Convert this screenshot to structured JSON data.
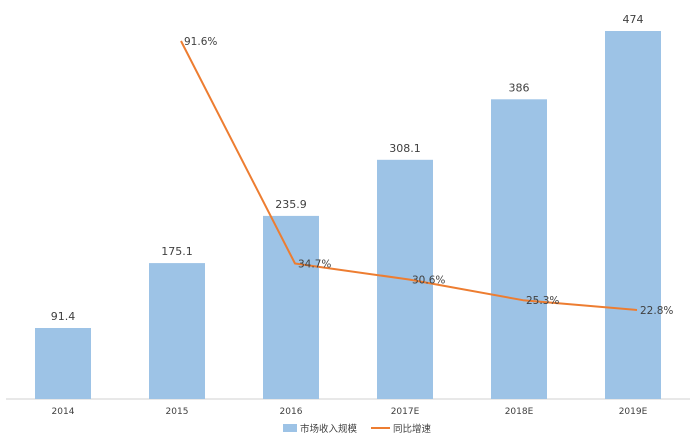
{
  "chart_data": {
    "type": "bar",
    "categories": [
      "2014",
      "2015",
      "2016",
      "2017E",
      "2018E",
      "2019E"
    ],
    "series": [
      {
        "name": "市场收入规模",
        "type": "bar",
        "axis": "left",
        "values": [
          91.4,
          175.1,
          235.9,
          308.1,
          386,
          474
        ],
        "labels": [
          "91.4",
          "175.1",
          "235.9",
          "308.1",
          "386",
          "474"
        ]
      },
      {
        "name": "同比增速",
        "type": "line",
        "axis": "right",
        "values": [
          null,
          91.6,
          34.7,
          30.6,
          25.3,
          22.8
        ],
        "labels": [
          "",
          "91.6%",
          "34.7%",
          "30.6%",
          "25.3%",
          "22.8%"
        ]
      }
    ],
    "ylim": [
      0,
      500
    ],
    "y2lim": [
      0,
      100
    ],
    "grid": false,
    "legend_position": "bottom",
    "colors": {
      "bar": "#9dc3e6",
      "line": "#ed7d31",
      "axis": "#d0d0d0",
      "text": "#404040"
    }
  }
}
